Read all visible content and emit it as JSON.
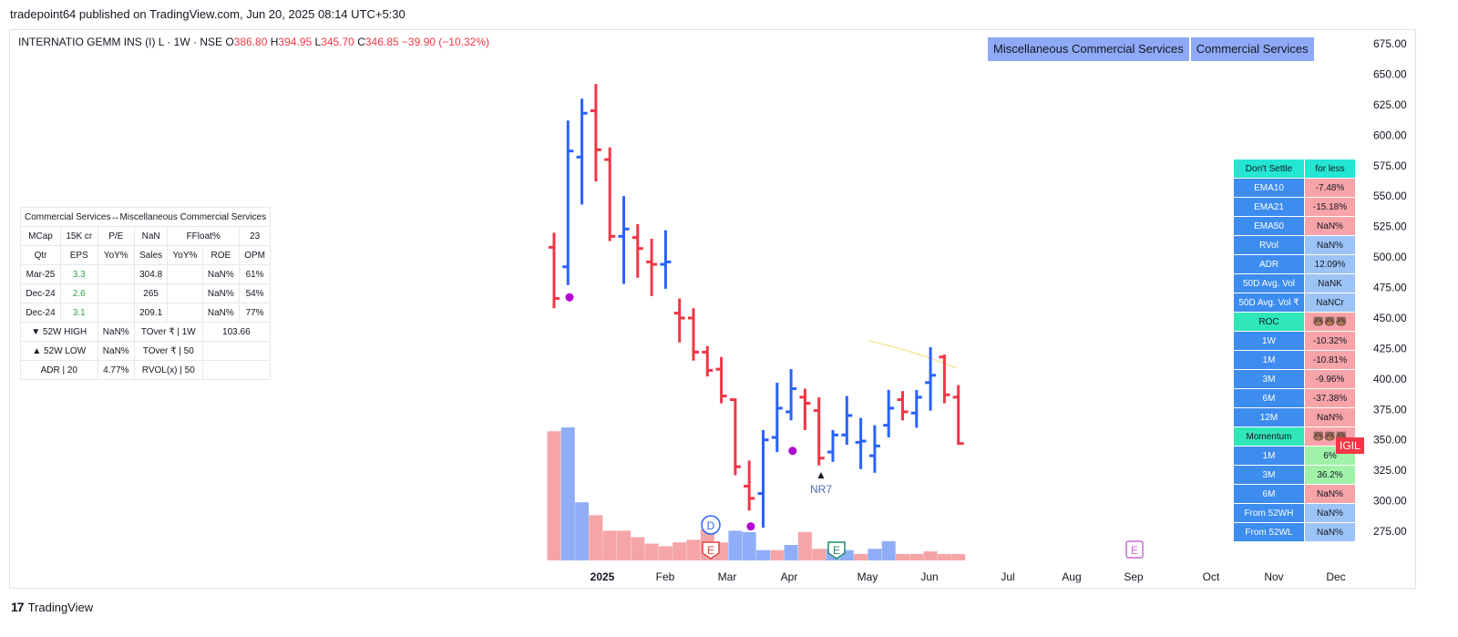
{
  "header": {
    "published": "tradepoint64 published on TradingView.com, Jun 20, 2025 08:14 UTC+5:30"
  },
  "symbol": {
    "name": "INTERNATIO GEMM INS (I) L · 1W · NSE",
    "o_label": "O",
    "o": "386.80",
    "h_label": "H",
    "h": "394.95",
    "l_label": "L",
    "l": "345.70",
    "c_label": "C",
    "c": "346.85",
    "change": "−39.90 (−10.32%)"
  },
  "sector": {
    "industry": "Miscellaneous Commercial Services",
    "sector": "Commercial Services"
  },
  "fundamentals": {
    "title": "Commercial Services↔Miscellaneous Commercial Services",
    "rows": [
      [
        "MCap",
        "15K cr",
        "P/E",
        "NaN",
        "FFloat%",
        "",
        "23"
      ],
      [
        "Qtr",
        "EPS",
        "YoY%",
        "Sales",
        "YoY%",
        "ROE",
        "OPM"
      ],
      [
        "Mar-25",
        "3.3",
        "",
        "304.8",
        "",
        "NaN%",
        "61%"
      ],
      [
        "Dec-24",
        "2.6",
        "",
        "265",
        "",
        "NaN%",
        "54%"
      ],
      [
        "Dec-24",
        "3.1",
        "",
        "209.1",
        "",
        "NaN%",
        "77%"
      ]
    ],
    "high_label": "▼ 52W HIGH",
    "high_val": "NaN%",
    "tover_1w": "TOver ₹ | 1W",
    "tover_1w_val": "103.66",
    "low_label": "▲ 52W LOW",
    "low_val": "NaN%",
    "tover_50": "TOver ₹ | 50",
    "adr_label": "ADR | 20",
    "adr_val": "4.77%",
    "rvol_label": "RVOL(x) | 50"
  },
  "right_table": [
    {
      "label": "Don't Settle",
      "value": "for less",
      "lc": "cc",
      "vc": "cc"
    },
    {
      "label": "EMA10",
      "value": "-7.48%",
      "lc": "cb",
      "vc": "cr"
    },
    {
      "label": "EMA21",
      "value": "-15.18%",
      "lc": "cb",
      "vc": "cr"
    },
    {
      "label": "EMA50",
      "value": "NaN%",
      "lc": "cb",
      "vc": "cr"
    },
    {
      "label": "RVol",
      "value": "NaN%",
      "lc": "cb",
      "vc": "cl"
    },
    {
      "label": "ADR",
      "value": "12.09%",
      "lc": "cb",
      "vc": "cl"
    },
    {
      "label": "50D Avg. Vol",
      "value": "NaNK",
      "lc": "cb",
      "vc": "cl"
    },
    {
      "label": "50D Avg. Vol ₹",
      "value": "NaNCr",
      "lc": "cb",
      "vc": "cl"
    },
    {
      "label": "ROC",
      "value": "🐻🐻🐻",
      "lc": "cg",
      "vc": "cr"
    },
    {
      "label": "1W",
      "value": "-10.32%",
      "lc": "cb",
      "vc": "cr"
    },
    {
      "label": "1M",
      "value": "-10.81%",
      "lc": "cb",
      "vc": "cr"
    },
    {
      "label": "3M",
      "value": "-9.96%",
      "lc": "cb",
      "vc": "cr"
    },
    {
      "label": "6M",
      "value": "-37.38%",
      "lc": "cb",
      "vc": "cr"
    },
    {
      "label": "12M",
      "value": "NaN%",
      "lc": "cb",
      "vc": "cr"
    },
    {
      "label": "Momentum",
      "value": "🐻🐻🐻",
      "lc": "cg",
      "vc": "cr"
    },
    {
      "label": "1M",
      "value": "6%",
      "lc": "cb",
      "vc": "cgr"
    },
    {
      "label": "3M",
      "value": "36.2%",
      "lc": "cb",
      "vc": "cgr"
    },
    {
      "label": "6M",
      "value": "NaN%",
      "lc": "cb",
      "vc": "cr"
    },
    {
      "label": "From 52WH",
      "value": "NaN%",
      "lc": "cb",
      "vc": "cl"
    },
    {
      "label": "From 52WL",
      "value": "NaN%",
      "lc": "cb",
      "vc": "cl"
    }
  ],
  "price_tag": "IGIL",
  "nr7": "NR7",
  "footer": {
    "brand": "TradingView"
  },
  "colors": {
    "up": "#2962ff",
    "down": "#f23645",
    "vol_up": "#90aef7",
    "vol_down": "#f5a5a7",
    "dot": "#b400d4"
  },
  "chart_data": {
    "type": "ohlc",
    "x_tick_labels": [
      "2025",
      "Feb",
      "Mar",
      "Apr",
      "May",
      "Jun",
      "Jul",
      "Aug",
      "Sep",
      "Oct",
      "Nov",
      "Dec"
    ],
    "y_ticks": [
      275,
      300,
      325,
      350,
      375,
      400,
      425,
      450,
      475,
      500,
      525,
      550,
      575,
      600,
      625,
      650,
      675
    ],
    "y_range": [
      250,
      690
    ],
    "bars": [
      {
        "o": 508,
        "h": 520,
        "l": 458,
        "c": 466
      },
      {
        "o": 492,
        "h": 612,
        "l": 477,
        "c": 587
      },
      {
        "o": 582,
        "h": 630,
        "l": 543,
        "c": 618
      },
      {
        "o": 620,
        "h": 642,
        "l": 562,
        "c": 588
      },
      {
        "o": 580,
        "h": 590,
        "l": 513,
        "c": 517
      },
      {
        "o": 517,
        "h": 550,
        "l": 478,
        "c": 523
      },
      {
        "o": 516,
        "h": 527,
        "l": 483,
        "c": 507
      },
      {
        "o": 496,
        "h": 515,
        "l": 468,
        "c": 494
      },
      {
        "o": 494,
        "h": 522,
        "l": 474,
        "c": 496
      },
      {
        "o": 454,
        "h": 466,
        "l": 430,
        "c": 450
      },
      {
        "o": 450,
        "h": 458,
        "l": 415,
        "c": 422
      },
      {
        "o": 422,
        "h": 427,
        "l": 402,
        "c": 407
      },
      {
        "o": 408,
        "h": 418,
        "l": 380,
        "c": 386
      },
      {
        "o": 383,
        "h": 384,
        "l": 321,
        "c": 328
      },
      {
        "o": 312,
        "h": 333,
        "l": 292,
        "c": 302
      },
      {
        "o": 306,
        "h": 358,
        "l": 278,
        "c": 350
      },
      {
        "o": 352,
        "h": 397,
        "l": 340,
        "c": 376
      },
      {
        "o": 373,
        "h": 408,
        "l": 366,
        "c": 392
      },
      {
        "o": 385,
        "h": 392,
        "l": 358,
        "c": 380
      },
      {
        "o": 374,
        "h": 385,
        "l": 329,
        "c": 335
      },
      {
        "o": 340,
        "h": 358,
        "l": 332,
        "c": 354
      },
      {
        "o": 354,
        "h": 386,
        "l": 346,
        "c": 370
      },
      {
        "o": 348,
        "h": 368,
        "l": 326,
        "c": 349
      },
      {
        "o": 337,
        "h": 362,
        "l": 323,
        "c": 345
      },
      {
        "o": 362,
        "h": 391,
        "l": 352,
        "c": 376
      },
      {
        "o": 383,
        "h": 390,
        "l": 366,
        "c": 373
      },
      {
        "o": 372,
        "h": 391,
        "l": 360,
        "c": 385
      },
      {
        "o": 397,
        "h": 426,
        "l": 374,
        "c": 403
      },
      {
        "o": 418,
        "h": 420,
        "l": 380,
        "c": 387
      },
      {
        "o": 385,
        "h": 395,
        "l": 346,
        "c": 347
      }
    ],
    "volume": [
      {
        "v": 100,
        "dir": "down"
      },
      {
        "v": 103,
        "dir": "up"
      },
      {
        "v": 45,
        "dir": "up"
      },
      {
        "v": 35,
        "dir": "down"
      },
      {
        "v": 23,
        "dir": "down"
      },
      {
        "v": 23,
        "dir": "down"
      },
      {
        "v": 18,
        "dir": "down"
      },
      {
        "v": 13,
        "dir": "down"
      },
      {
        "v": 11,
        "dir": "down"
      },
      {
        "v": 14,
        "dir": "down"
      },
      {
        "v": 16,
        "dir": "down"
      },
      {
        "v": 24,
        "dir": "down"
      },
      {
        "v": 14,
        "dir": "down"
      },
      {
        "v": 23,
        "dir": "up"
      },
      {
        "v": 22,
        "dir": "up"
      },
      {
        "v": 8,
        "dir": "up"
      },
      {
        "v": 8,
        "dir": "down"
      },
      {
        "v": 12,
        "dir": "up"
      },
      {
        "v": 22,
        "dir": "down"
      },
      {
        "v": 9,
        "dir": "down"
      },
      {
        "v": 9,
        "dir": "up"
      },
      {
        "v": 8,
        "dir": "up"
      },
      {
        "v": 5,
        "dir": "down"
      },
      {
        "v": 9,
        "dir": "up"
      },
      {
        "v": 15,
        "dir": "up"
      },
      {
        "v": 5,
        "dir": "down"
      },
      {
        "v": 5,
        "dir": "down"
      },
      {
        "v": 7,
        "dir": "down"
      },
      {
        "v": 5,
        "dir": "down"
      },
      {
        "v": 5,
        "dir": "down"
      }
    ],
    "dots": [
      {
        "bar": 0,
        "price": 467
      },
      {
        "bar": 13,
        "price": 279
      },
      {
        "bar": 16,
        "price": 341
      }
    ],
    "events": [
      {
        "label": "D",
        "bar": 11,
        "type": "dividend"
      },
      {
        "label": "E",
        "bar": 11,
        "type": "earnings-past"
      },
      {
        "label": "E",
        "bar": 19,
        "type": "earnings-recent"
      },
      {
        "label": "E",
        "month": "Sep",
        "type": "earnings-future"
      }
    ]
  }
}
